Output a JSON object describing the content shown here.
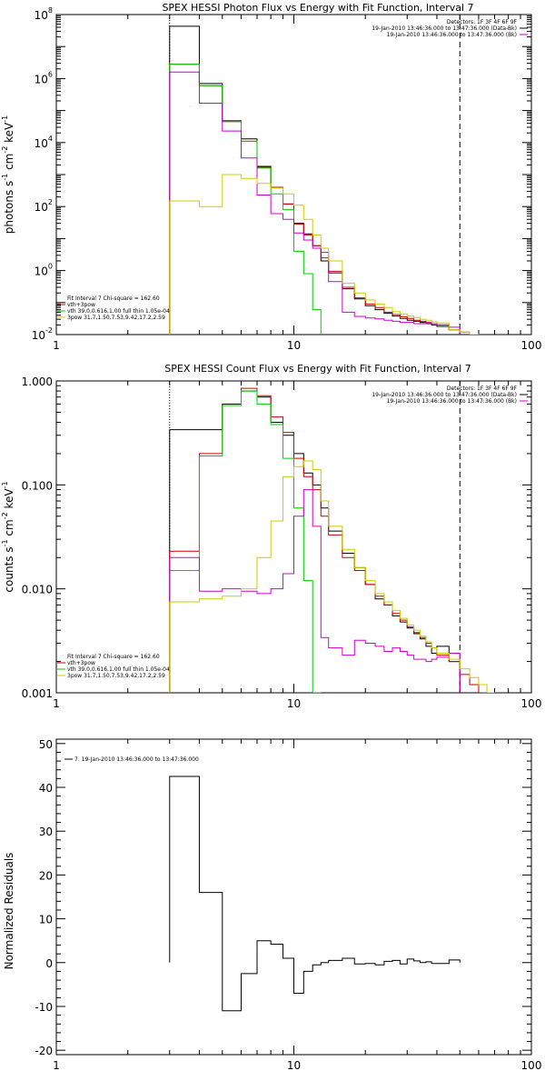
{
  "chart_data": [
    {
      "type": "line",
      "step": true,
      "title": "SPEX HESSI Photon Flux vs Energy with Fit Function, Interval 7",
      "ylabel_parts": [
        "photons s",
        "-1",
        " cm",
        "-2",
        " keV",
        "-1"
      ],
      "xlabel": "",
      "xscale": "log",
      "yscale": "log",
      "xlim": [
        1,
        100
      ],
      "ylim": [
        0.01,
        100000000
      ],
      "xticks": [
        1,
        10,
        100
      ],
      "xtick_labels": [
        "1",
        "10",
        "100"
      ],
      "yticks": [
        0.01,
        1,
        100,
        10000,
        1000000,
        100000000
      ],
      "ytick_labels": [
        {
          "base": "10",
          "exp": "-2"
        },
        {
          "base": "10",
          "exp": "0"
        },
        {
          "base": "10",
          "exp": "2"
        },
        {
          "base": "10",
          "exp": "4"
        },
        {
          "base": "10",
          "exp": "6"
        },
        {
          "base": "10",
          "exp": "8"
        }
      ],
      "vlines": [
        {
          "x": 3,
          "style": "dotted",
          "color": "#000000"
        },
        {
          "x": 50,
          "style": "dashed",
          "color": "#000000"
        }
      ],
      "legend_top_right": [
        {
          "text": "Detectors: 1F 3F 4F 6F 9F",
          "color": ""
        },
        {
          "text": "19-Jan-2010 13:46:36.000 to 13:47:36.000 (Data-Bk)",
          "color": "#000000"
        },
        {
          "text": "19-Jan-2010 13:46:36.000 to 13:47:36.000 (Bk)",
          "color": "#cc00cc"
        }
      ],
      "legend_bottom_left": [
        {
          "text": "Fit Interval 7   Chi-square = 162.60",
          "color": ""
        },
        {
          "text": "vth+3pow",
          "color": "#cc0000"
        },
        {
          "text": "vth 39.0,0.616,1.00  full thin 1.05e-04",
          "color": "#00cc00"
        },
        {
          "text": "3pow 31.7,1.50,7.53,9.42,17.2,2.59",
          "color": "#cccc00"
        }
      ],
      "edges": [
        3,
        4,
        5,
        6,
        7,
        8,
        9,
        10,
        11,
        12,
        13,
        14,
        16,
        18,
        20,
        22,
        24,
        26,
        28,
        30,
        32,
        34,
        36,
        38,
        40,
        45,
        50,
        55,
        60,
        65,
        70
      ],
      "series": [
        {
          "name": "",
          "color": "#000000",
          "values": [
            43000000,
            700000,
            48000,
            13000,
            1800,
            400,
            120,
            30,
            14,
            6,
            2,
            0.85,
            0.27,
            0.13,
            0.08,
            0.06,
            0.046,
            0.038,
            0.032,
            0.028,
            0.026,
            0.024,
            0.022,
            0.02,
            0.018,
            0.014,
            null,
            null,
            null,
            null
          ]
        },
        {
          "name": "",
          "color": "#cc0000",
          "values": [
            2800000,
            600000,
            45000,
            11000,
            1700,
            400,
            120,
            28,
            13,
            6,
            2.5,
            0.95,
            0.3,
            0.14,
            0.09,
            0.07,
            0.05,
            0.042,
            0.036,
            0.032,
            0.028,
            0.026,
            0.024,
            0.022,
            0.02,
            0.014,
            0.012,
            0.01,
            0.009,
            null
          ]
        },
        {
          "name": "",
          "color": "#00cc00",
          "values": [
            2800000,
            600000,
            45000,
            11000,
            1600,
            250,
            80,
            4,
            0.8,
            0.06,
            0.007,
            null,
            null,
            null,
            null,
            null,
            null,
            null,
            null,
            null,
            null,
            null,
            null,
            null,
            null,
            null,
            null,
            null,
            null,
            null
          ]
        },
        {
          "name": "",
          "color": "#cc00cc",
          "values": [
            1600000,
            170000,
            23000,
            3300,
            230,
            60,
            40,
            15,
            9,
            5,
            3.7,
            0.45,
            0.05,
            0.037,
            0.033,
            0.031,
            0.028,
            0.026,
            0.024,
            0.024,
            0.022,
            0.022,
            0.024,
            0.022,
            0.02,
            0.017,
            null,
            null,
            null,
            null
          ]
        },
        {
          "name": "",
          "color": "#cccc00",
          "values": [
            150,
            100,
            1000,
            760,
            530,
            380,
            250,
            110,
            40,
            13,
            5,
            2,
            0.4,
            0.2,
            0.12,
            0.09,
            0.07,
            0.052,
            0.044,
            0.038,
            0.034,
            0.03,
            0.028,
            0.025,
            0.023,
            0.014,
            0.012,
            0.01,
            0.009,
            null
          ]
        }
      ]
    },
    {
      "type": "line",
      "step": true,
      "title": "SPEX HESSI Count Flux vs Energy with Fit Function, Interval 7",
      "ylabel_parts": [
        "counts s",
        "-1",
        " cm",
        "-2",
        " keV",
        "-1"
      ],
      "xlabel": "",
      "xscale": "log",
      "yscale": "log",
      "xlim": [
        1,
        100
      ],
      "ylim": [
        0.001,
        1.0
      ],
      "xticks": [
        1,
        10,
        100
      ],
      "xtick_labels": [
        "1",
        "10",
        "100"
      ],
      "yticks": [
        0.001,
        0.01,
        0.1,
        1.0
      ],
      "ytick_labels": [
        "0.001",
        "0.010",
        "0.100",
        "1.000"
      ],
      "vlines": [
        {
          "x": 3,
          "style": "dotted",
          "color": "#000000"
        },
        {
          "x": 50,
          "style": "dashed",
          "color": "#000000"
        }
      ],
      "legend_top_right": [
        {
          "text": "Detectors: 1F 3F 4F 6F 9F",
          "color": ""
        },
        {
          "text": "19-Jan-2010 13:46:36.000 to 13:47:36.000 (Data-Bk)",
          "color": "#000000"
        },
        {
          "text": "19-Jan-2010 13:46:36.000 to 13:47:36.000 (Bk)",
          "color": "#cc00cc"
        }
      ],
      "legend_bottom_left": [
        {
          "text": "Fit Interval 7   Chi-square = 162.60",
          "color": ""
        },
        {
          "text": "vth+3pow",
          "color": "#cc0000"
        },
        {
          "text": "vth 39.0,0.616,1.00  full thin 1.05e-04",
          "color": "#00cc00"
        },
        {
          "text": "3pow 31.7,1.50,7.53,9.42,17.2,2.59",
          "color": "#cccc00"
        }
      ],
      "edges": [
        3,
        4,
        5,
        6,
        7,
        8,
        9,
        10,
        11,
        12,
        13,
        14,
        16,
        18,
        20,
        22,
        24,
        26,
        28,
        30,
        32,
        34,
        36,
        38,
        40,
        45,
        50,
        55,
        60,
        65,
        70
      ],
      "series": [
        {
          "name": "",
          "color": "#000000",
          "values": [
            0.34,
            0.34,
            0.6,
            0.8,
            0.7,
            0.4,
            0.3,
            0.2,
            0.13,
            0.1,
            0.06,
            0.036,
            0.022,
            0.016,
            0.011,
            0.008,
            0.007,
            0.0055,
            0.0048,
            0.0042,
            0.0037,
            0.0033,
            0.0028,
            0.0024,
            0.0028,
            0.002,
            null,
            null,
            null,
            null
          ]
        },
        {
          "name": "",
          "color": "#cc0000",
          "values": [
            0.023,
            0.2,
            0.58,
            0.85,
            0.72,
            0.45,
            0.32,
            0.18,
            0.12,
            0.09,
            0.05,
            0.033,
            0.02,
            0.015,
            0.011,
            0.0085,
            0.007,
            0.0058,
            0.005,
            0.0043,
            0.0038,
            0.0034,
            0.003,
            0.0027,
            0.0023,
            0.002,
            0.0015,
            0.0012,
            0.001,
            null
          ]
        },
        {
          "name": "",
          "color": "#00cc00",
          "values": [
            0.015,
            0.19,
            0.58,
            0.8,
            0.6,
            0.38,
            0.18,
            0.06,
            0.012,
            0.001,
            null,
            null,
            null,
            null,
            null,
            null,
            null,
            null,
            null,
            null,
            null,
            null,
            null,
            null,
            null,
            null,
            null,
            null,
            null,
            null
          ]
        },
        {
          "name": "",
          "color": "#cc00cc",
          "values": [
            0.02,
            0.0095,
            0.01,
            0.0095,
            0.009,
            0.01,
            0.014,
            0.05,
            0.09,
            0.04,
            0.0034,
            0.0027,
            0.0023,
            0.0032,
            0.003,
            0.0028,
            0.0025,
            0.0027,
            0.0025,
            0.0023,
            0.0021,
            0.0021,
            0.002,
            0.0021,
            0.0022,
            0.0024,
            null,
            null,
            null,
            null
          ]
        },
        {
          "name": "",
          "color": "#cccc00",
          "values": [
            0.0075,
            0.008,
            0.0085,
            0.01,
            0.02,
            0.045,
            0.12,
            0.15,
            0.17,
            0.14,
            0.07,
            0.04,
            0.024,
            0.016,
            0.012,
            0.009,
            0.0075,
            0.0062,
            0.0052,
            0.0045,
            0.004,
            0.0035,
            0.0031,
            0.0027,
            0.0024,
            0.0021,
            0.0017,
            0.0014,
            0.0012,
            0.001
          ]
        }
      ]
    },
    {
      "type": "line",
      "step": true,
      "title": "",
      "ylabel": "Normalized Residuals",
      "xlabel": "",
      "xscale": "log",
      "yscale": "linear",
      "xlim": [
        1,
        100
      ],
      "ylim": [
        -21,
        51
      ],
      "xticks": [
        1,
        10,
        100
      ],
      "xtick_labels": [
        "1",
        "10",
        "100"
      ],
      "yticks": [
        -20,
        -10,
        0,
        10,
        20,
        30,
        40,
        50
      ],
      "ytick_labels": [
        "-20",
        "-10",
        "0",
        "10",
        "20",
        "30",
        "40",
        "50"
      ],
      "legend_top_left": [
        {
          "text": "7. 19-Jan-2010 13:46:36.000 to 13:47:36.000",
          "color": "#000000"
        }
      ],
      "edges": [
        3,
        4,
        5,
        6,
        7,
        8,
        9,
        10,
        11,
        12,
        13,
        14,
        16,
        18,
        20,
        22,
        24,
        26,
        28,
        30,
        32,
        34,
        36,
        38,
        40,
        45,
        50
      ],
      "series": [
        {
          "name": "",
          "color": "#000000",
          "values": [
            42.5,
            16,
            -11,
            -2.5,
            5,
            4.2,
            1,
            -7,
            -2,
            -0.5,
            0,
            0.5,
            1,
            -0.3,
            -0.2,
            -0.5,
            0.3,
            0.5,
            -0.3,
            0.8,
            0.4,
            0,
            0.2,
            -0.2,
            -0.2,
            0.6
          ]
        }
      ]
    }
  ]
}
